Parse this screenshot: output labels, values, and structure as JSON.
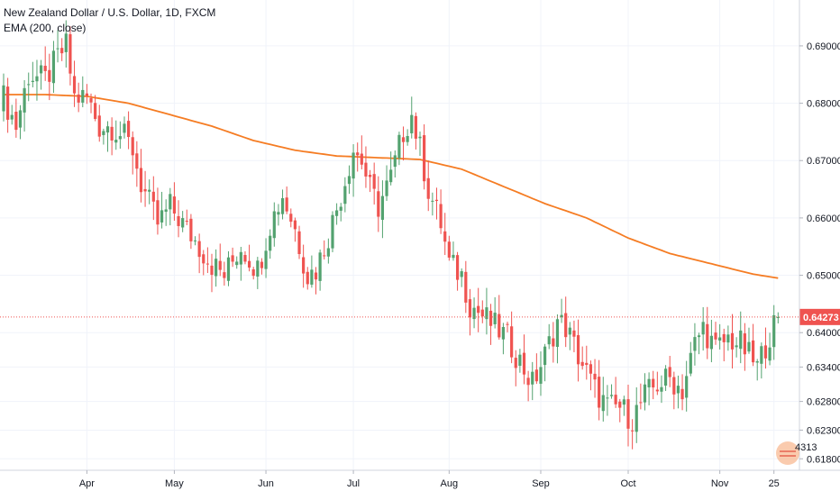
{
  "legend": {
    "title": "New Zealand Dollar / U.S. Dollar, 1D, FXCM",
    "indicator": "EMA (200, close)"
  },
  "colors": {
    "up": "#53a26f",
    "down": "#ef5350",
    "ema": "#f57c23",
    "last_price_line": "#ef5350",
    "axis_text": "#131722"
  },
  "watermark": {
    "label": "4313",
    "icon": "flag-badge-icon"
  },
  "chart_data": {
    "type": "candlestick",
    "title": "New Zealand Dollar / U.S. Dollar, 1D, FXCM",
    "ylim": [
      0.616,
      0.698
    ],
    "yticks": [
      "0.69000",
      "0.68000",
      "0.67000",
      "0.66000",
      "0.65000",
      "0.64000",
      "0.63400",
      "0.62800",
      "0.62300",
      "0.61800"
    ],
    "ytick_values": [
      0.69,
      0.68,
      0.67,
      0.66,
      0.65,
      0.64,
      0.634,
      0.628,
      0.623,
      0.618
    ],
    "xticks": [
      "Apr",
      "May",
      "Jun",
      "Jul",
      "Aug",
      "Sep",
      "Oct",
      "Nov",
      "25"
    ],
    "xtick_index": [
      20,
      41,
      63,
      84,
      107,
      129,
      150,
      172,
      185
    ],
    "last_price": 0.64273,
    "last_price_label": "0.64273",
    "ema_label": "EMA (200, close)",
    "ema_knots": [
      [
        0,
        0.6815
      ],
      [
        10,
        0.6815
      ],
      [
        20,
        0.6812
      ],
      [
        30,
        0.68
      ],
      [
        40,
        0.678
      ],
      [
        50,
        0.676
      ],
      [
        60,
        0.6735
      ],
      [
        70,
        0.6718
      ],
      [
        80,
        0.6708
      ],
      [
        90,
        0.6705
      ],
      [
        100,
        0.6702
      ],
      [
        110,
        0.6685
      ],
      [
        120,
        0.6655
      ],
      [
        130,
        0.6625
      ],
      [
        140,
        0.66
      ],
      [
        150,
        0.6565
      ],
      [
        160,
        0.6538
      ],
      [
        170,
        0.652
      ],
      [
        180,
        0.6502
      ],
      [
        186,
        0.6495
      ]
    ],
    "close_knots": [
      [
        0,
        0.681
      ],
      [
        3,
        0.676
      ],
      [
        6,
        0.685
      ],
      [
        10,
        0.684
      ],
      [
        13,
        0.688
      ],
      [
        15,
        0.69
      ],
      [
        17,
        0.681
      ],
      [
        20,
        0.681
      ],
      [
        23,
        0.676
      ],
      [
        26,
        0.676
      ],
      [
        29,
        0.674
      ],
      [
        31,
        0.672
      ],
      [
        33,
        0.666
      ],
      [
        37,
        0.659
      ],
      [
        40,
        0.662
      ],
      [
        43,
        0.659
      ],
      [
        46,
        0.656
      ],
      [
        50,
        0.652
      ],
      [
        53,
        0.65
      ],
      [
        57,
        0.655
      ],
      [
        61,
        0.651
      ],
      [
        64,
        0.659
      ],
      [
        67,
        0.664
      ],
      [
        70,
        0.658
      ],
      [
        73,
        0.65
      ],
      [
        75,
        0.651
      ],
      [
        78,
        0.657
      ],
      [
        81,
        0.664
      ],
      [
        84,
        0.672
      ],
      [
        86,
        0.67
      ],
      [
        88,
        0.665
      ],
      [
        90,
        0.662
      ],
      [
        93,
        0.667
      ],
      [
        96,
        0.675
      ],
      [
        98,
        0.678
      ],
      [
        100,
        0.672
      ],
      [
        102,
        0.665
      ],
      [
        105,
        0.659
      ],
      [
        107,
        0.652
      ],
      [
        110,
        0.65
      ],
      [
        112,
        0.645
      ],
      [
        115,
        0.643
      ],
      [
        118,
        0.641
      ],
      [
        121,
        0.639
      ],
      [
        124,
        0.635
      ],
      [
        127,
        0.631
      ],
      [
        130,
        0.636
      ],
      [
        133,
        0.642
      ],
      [
        135,
        0.641
      ],
      [
        138,
        0.636
      ],
      [
        142,
        0.63
      ],
      [
        145,
        0.627
      ],
      [
        148,
        0.627
      ],
      [
        151,
        0.625
      ],
      [
        154,
        0.629
      ],
      [
        157,
        0.631
      ],
      [
        160,
        0.632
      ],
      [
        163,
        0.63
      ],
      [
        166,
        0.638
      ],
      [
        168,
        0.641
      ],
      [
        171,
        0.637
      ],
      [
        174,
        0.639
      ],
      [
        177,
        0.638
      ],
      [
        179,
        0.636
      ],
      [
        181,
        0.634
      ],
      [
        183,
        0.638
      ],
      [
        185,
        0.641
      ],
      [
        186,
        0.6427
      ]
    ]
  }
}
